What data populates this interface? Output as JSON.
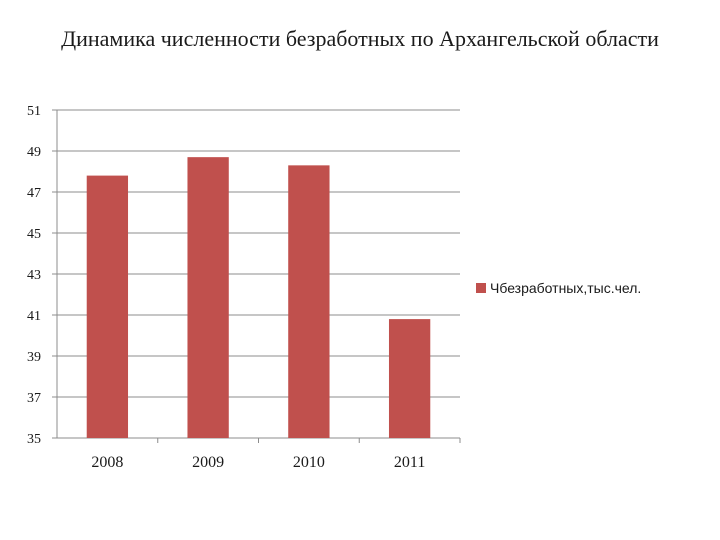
{
  "chart_data": {
    "type": "bar",
    "title": "Динамика численности безработных по Архангельской области",
    "categories": [
      "2008",
      "2009",
      "2010",
      "2011"
    ],
    "series": [
      {
        "name": "Чбезработных,тыс.чел.",
        "values": [
          47.8,
          48.7,
          48.3,
          40.8
        ],
        "color": "#c0504d"
      }
    ],
    "ylim": [
      35,
      51
    ],
    "yticks": [
      35,
      37,
      39,
      41,
      43,
      45,
      47,
      49,
      51
    ],
    "grid": true,
    "legend": "right"
  }
}
